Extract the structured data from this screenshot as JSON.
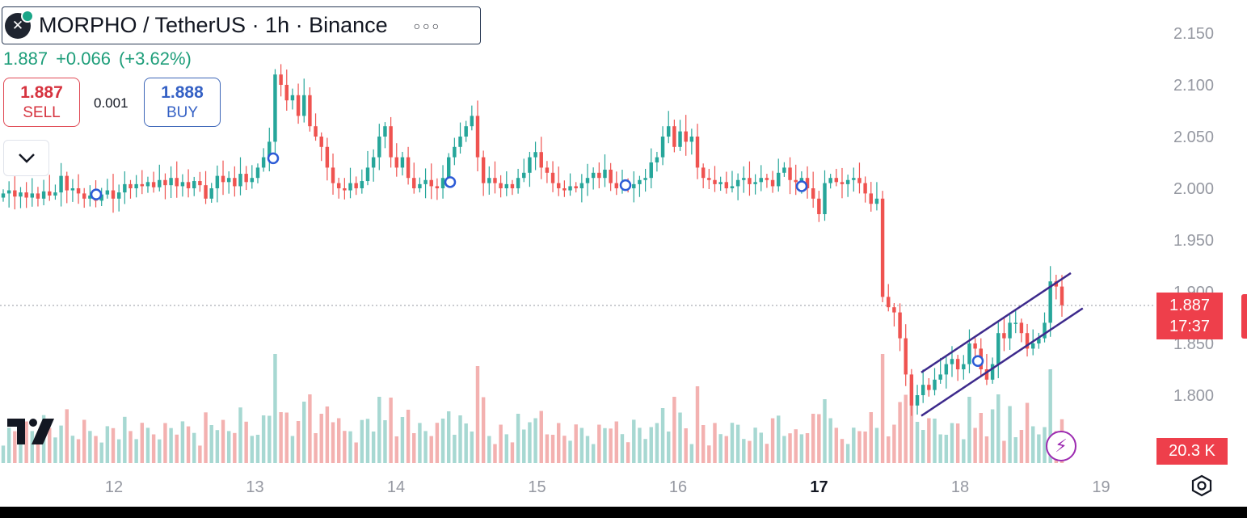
{
  "header": {
    "title": "MORPHO / TetherUS · 1h · Binance",
    "price": "1.887",
    "change": "+0.066",
    "change_pct": "(+3.62%)"
  },
  "trade": {
    "sell_price": "1.887",
    "sell_label": "SELL",
    "spread": "0.001",
    "buy_price": "1.888",
    "buy_label": "BUY"
  },
  "price_tag": {
    "price": "1.887",
    "countdown": "17:37"
  },
  "volume_tag": "20.3 K",
  "colors": {
    "up": "#26a69a",
    "down": "#ef5350",
    "channel": "#3d2a8c",
    "marker": "#2c5bd6"
  },
  "icons": [
    "morpho-logo-icon",
    "more-options-icon",
    "chevron-down-icon",
    "tradingview-logo-icon",
    "lightning-icon",
    "settings-icon"
  ],
  "chart_data": {
    "type": "candlestick",
    "symbol": "MORPHO / TetherUS",
    "interval": "1h",
    "exchange": "Binance",
    "ylim": [
      1.75,
      2.17
    ],
    "y_ticks": [
      "2.150",
      "2.100",
      "2.050",
      "2.000",
      "1.950",
      "1.900",
      "1.850",
      "1.800"
    ],
    "x_ticks": [
      {
        "label": "12",
        "x": 3
      },
      {
        "label": "13",
        "x": 4
      },
      {
        "label": "14",
        "x": 5
      },
      {
        "label": "15",
        "x": 6
      },
      {
        "label": "16",
        "x": 7
      },
      {
        "label": "17",
        "x": 8
      },
      {
        "label": "18",
        "x": 9
      },
      {
        "label": "19",
        "x": 10
      }
    ],
    "closes": [
      1.995,
      1.998,
      1.992,
      1.996,
      1.991,
      1.995,
      1.99,
      1.997,
      1.993,
      1.996,
      2.012,
      1.998,
      2.0,
      1.995,
      1.99,
      1.993,
      1.988,
      1.994,
      1.998,
      1.99,
      1.996,
      2.004,
      2.0,
      2.004,
      2.002,
      2.006,
      2.001,
      2.008,
      2.003,
      2.01,
      2.002,
      2.006,
      2.0,
      2.007,
      2.003,
      1.99,
      2.0,
      2.012,
      2.006,
      2.01,
      2.002,
      2.014,
      2.006,
      2.01,
      2.02,
      2.03,
      2.045,
      2.11,
      2.1,
      2.085,
      2.09,
      2.07,
      2.09,
      2.06,
      2.05,
      2.04,
      2.02,
      2.005,
      2.0,
      1.998,
      2.005,
      2.0,
      2.007,
      2.02,
      2.03,
      2.05,
      2.06,
      2.03,
      2.02,
      2.03,
      2.01,
      2.0,
      2.004,
      2.008,
      2.002,
      2.0,
      2.01,
      2.03,
      2.04,
      2.05,
      2.06,
      2.07,
      2.03,
      2.005,
      2.01,
      2.005,
      2.0,
      2.004,
      2.0,
      2.01,
      2.015,
      2.03,
      2.035,
      2.02,
      2.015,
      2.005,
      2.0,
      1.998,
      2.002,
      2.0,
      2.005,
      2.01,
      2.015,
      2.01,
      2.018,
      2.005,
      2.0,
      2.002,
      2.0,
      2.004,
      2.008,
      2.01,
      2.025,
      2.03,
      2.05,
      2.06,
      2.04,
      2.055,
      2.045,
      2.05,
      2.02,
      2.01,
      2.008,
      2.004,
      2.006,
      2.0,
      2.002,
      2.008,
      2.01,
      2.004,
      2.006,
      2.01,
      2.008,
      2.002,
      2.015,
      2.02,
      2.008,
      2.006,
      2.01,
      2.0,
      1.99,
      1.975,
      2.005,
      2.01,
      2.006,
      2.004,
      2.008,
      2.01,
      2.005,
      1.995,
      1.985,
      1.99,
      1.895,
      1.885,
      1.88,
      1.855,
      1.82,
      1.79,
      1.8,
      1.81,
      1.805,
      1.815,
      1.82,
      1.83,
      1.835,
      1.825,
      1.83,
      1.85,
      1.845,
      1.825,
      1.815,
      1.83,
      1.86,
      1.855,
      1.87,
      1.87,
      1.86,
      1.845,
      1.85,
      1.855,
      1.87,
      1.91,
      1.905,
      1.887
    ],
    "channel": {
      "upper": {
        "from": [
          2.1,
          1.822
        ],
        "to": [
          2.35,
          1.918
        ]
      },
      "lower": {
        "from": [
          2.1,
          1.78
        ],
        "to": [
          2.37,
          1.884
        ]
      }
    },
    "markers": [
      {
        "x": 0.3,
        "y": 1.994
      },
      {
        "x": 1.3,
        "y": 2.029
      },
      {
        "x": 1.55,
        "y": 2.006
      },
      {
        "x": 2.4,
        "y": 2.003
      },
      {
        "x": 2.4,
        "y": 2.002
      },
      {
        "x": 3.2,
        "y": 2.002
      },
      {
        "x": 3.95,
        "y": 1.833
      }
    ],
    "volume_label": "20.3 K"
  }
}
